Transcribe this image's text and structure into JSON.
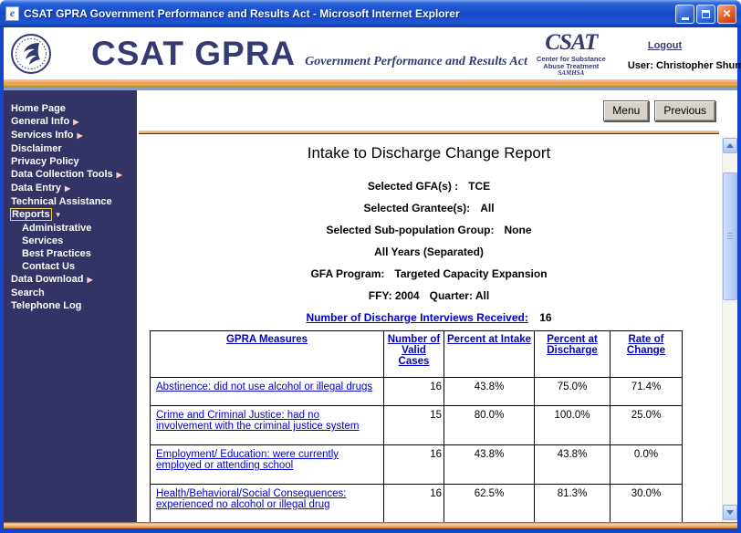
{
  "window": {
    "title": "CSAT GPRA Government Performance and Results Act - Microsoft Internet Explorer",
    "icons": {
      "minimize": "minimize-icon",
      "maximize": "maximize-icon",
      "close": "close-icon",
      "ie_page": "ie-document-icon"
    }
  },
  "header": {
    "logo_text": "CSAT GPRA",
    "logo_subtitle": "Government Performance and Results Act",
    "csat_logo": {
      "title": "CSAT",
      "line1": "Center for Substance",
      "line2": "Abuse Treatment",
      "line3": "SAMHSA"
    },
    "logout_label": "Logout",
    "user_label": "User: Christopher Shumway"
  },
  "sidebar": {
    "items": [
      {
        "label": "Home Page"
      },
      {
        "label": "General Info",
        "arrow": "right"
      },
      {
        "label": "Services Info",
        "arrow": "right"
      },
      {
        "label": "Disclaimer"
      },
      {
        "label": "Privacy Policy"
      },
      {
        "label": "Data Collection Tools",
        "arrow": "right"
      },
      {
        "label": "Data Entry",
        "arrow": "right"
      },
      {
        "label": "Technical Assistance"
      },
      {
        "label": "Reports",
        "arrow": "down",
        "selected": true
      },
      {
        "label": "Administrative",
        "indent": true
      },
      {
        "label": "Services",
        "indent": true
      },
      {
        "label": "Best Practices",
        "indent": true
      },
      {
        "label": "Contact Us",
        "indent": true
      },
      {
        "label": "Data Download",
        "arrow": "right"
      },
      {
        "label": "Search"
      },
      {
        "label": "Telephone Log"
      }
    ]
  },
  "toolbar": {
    "menu_label": "Menu",
    "previous_label": "Previous"
  },
  "report": {
    "title": "Intake to Discharge Change Report",
    "params": [
      {
        "label": "Selected GFA(s) :",
        "value": "TCE"
      },
      {
        "label": "Selected Grantee(s):",
        "value": "All"
      },
      {
        "label": "Selected Sub-population Group:",
        "value": "None"
      },
      {
        "label": "All Years (Separated)",
        "value": ""
      },
      {
        "label": "GFA Program:",
        "value": "Targeted Capacity Expansion"
      },
      {
        "label": "FFY: 2004",
        "value": "Quarter: All"
      }
    ],
    "interviews_label": "Number of Discharge Interviews Received:",
    "interviews_count": "16"
  },
  "table": {
    "headers": [
      "GPRA Measures",
      "Number of Valid Cases",
      "Percent at Intake",
      "Percent at Discharge",
      "Rate of Change"
    ],
    "rows": [
      {
        "measure": "Abstinence:  did not use alcohol or illegal drugs",
        "valid_cases": "16",
        "intake": "43.8%",
        "discharge": "75.0%",
        "change": "71.4%"
      },
      {
        "measure": "Crime and Criminal Justice:  had no involvement with the criminal justice system",
        "valid_cases": "15",
        "intake": "80.0%",
        "discharge": "100.0%",
        "change": "25.0%"
      },
      {
        "measure": "Employment/ Education:  were currently employed or attending school",
        "valid_cases": "16",
        "intake": "43.8%",
        "discharge": "43.8%",
        "change": "0.0%"
      },
      {
        "measure": "Health/Behavioral/Social Consequences:  experienced no alcohol or illegal drug",
        "valid_cases": "16",
        "intake": "62.5%",
        "discharge": "81.3%",
        "change": "30.0%"
      }
    ]
  },
  "colors": {
    "accent_navy": "#333366",
    "link_blue": "#0000CC",
    "stripe_orange": "#F2A45C",
    "titlebar_blue": "#1A52CC",
    "selected_outline": "#EFCF3A"
  }
}
